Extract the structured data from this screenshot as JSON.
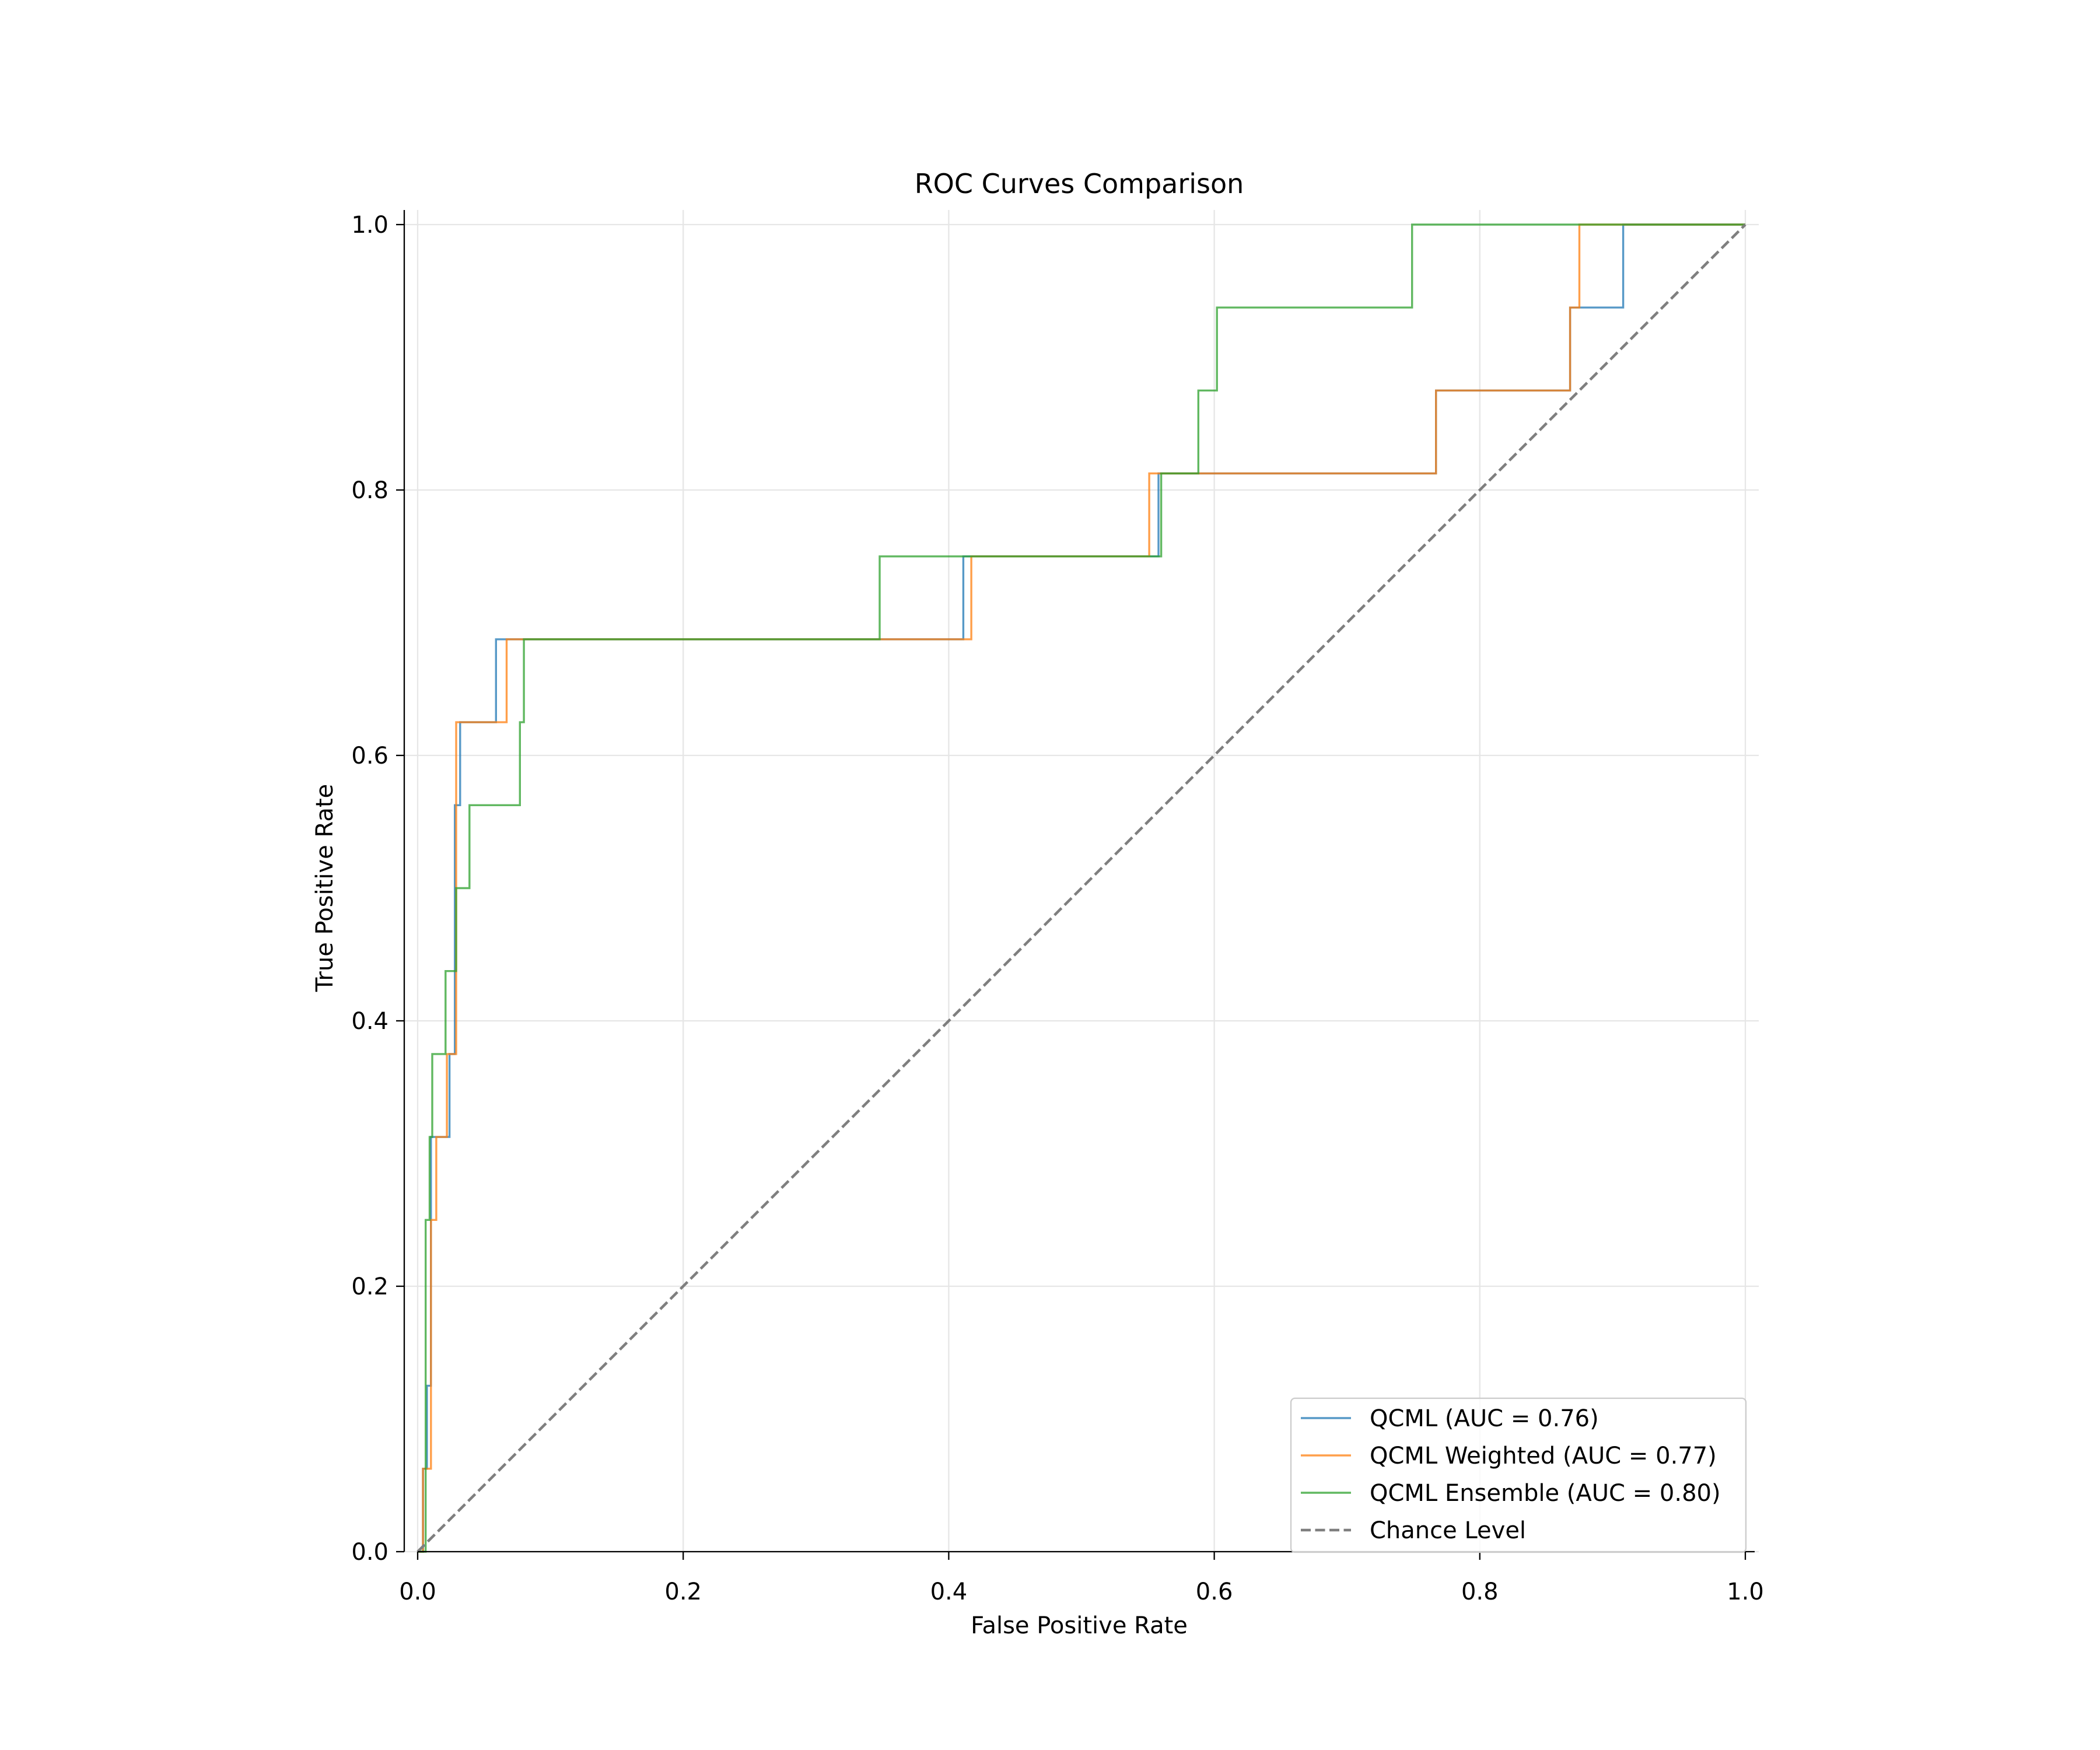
{
  "chart_data": {
    "type": "line",
    "title": "ROC Curves Comparison",
    "xlabel": "False Positive Rate",
    "ylabel": "True Positive Rate",
    "xlim": [
      0.0,
      1.0
    ],
    "ylim": [
      0.0,
      1.0
    ],
    "xticks": [
      "0.0",
      "0.2",
      "0.4",
      "0.6",
      "0.8",
      "1.0"
    ],
    "yticks": [
      "0.0",
      "0.2",
      "0.4",
      "0.6",
      "0.8",
      "1.0"
    ],
    "grid": true,
    "legend_position": "lower-right",
    "series": [
      {
        "name": "QCML (AUC = 0.76)",
        "color": "#1f77b4",
        "style": "step",
        "x": [
          0.0,
          0.004,
          0.004,
          0.007,
          0.007,
          0.01,
          0.01,
          0.024,
          0.024,
          0.028,
          0.028,
          0.032,
          0.032,
          0.059,
          0.059,
          0.411,
          0.411,
          0.558,
          0.558,
          0.767,
          0.767,
          0.868,
          0.868,
          0.908,
          0.908,
          1.0
        ],
        "y": [
          0.0,
          0.0,
          0.0625,
          0.0625,
          0.125,
          0.125,
          0.3125,
          0.3125,
          0.375,
          0.375,
          0.5625,
          0.5625,
          0.625,
          0.625,
          0.6875,
          0.6875,
          0.75,
          0.75,
          0.8125,
          0.8125,
          0.875,
          0.875,
          0.9375,
          0.9375,
          1.0,
          1.0
        ]
      },
      {
        "name": "QCML Weighted (AUC = 0.77)",
        "color": "#ff7f0e",
        "style": "step",
        "x": [
          0.0,
          0.004,
          0.004,
          0.01,
          0.01,
          0.014,
          0.014,
          0.022,
          0.022,
          0.029,
          0.029,
          0.067,
          0.067,
          0.417,
          0.417,
          0.551,
          0.551,
          0.767,
          0.767,
          0.868,
          0.868,
          0.875,
          0.875,
          1.0
        ],
        "y": [
          0.0,
          0.0,
          0.0625,
          0.0625,
          0.25,
          0.25,
          0.3125,
          0.3125,
          0.375,
          0.375,
          0.625,
          0.625,
          0.6875,
          0.6875,
          0.75,
          0.75,
          0.8125,
          0.8125,
          0.875,
          0.875,
          0.9375,
          0.9375,
          1.0,
          1.0
        ]
      },
      {
        "name": "QCML Ensemble (AUC = 0.80)",
        "color": "#2ca02c",
        "style": "step",
        "x": [
          0.0,
          0.006,
          0.006,
          0.009,
          0.009,
          0.011,
          0.011,
          0.021,
          0.021,
          0.029,
          0.029,
          0.039,
          0.039,
          0.077,
          0.077,
          0.08,
          0.08,
          0.348,
          0.348,
          0.56,
          0.56,
          0.588,
          0.588,
          0.602,
          0.602,
          0.749,
          0.749,
          1.0
        ],
        "y": [
          0.0,
          0.0,
          0.25,
          0.25,
          0.3125,
          0.3125,
          0.375,
          0.375,
          0.4375,
          0.4375,
          0.5,
          0.5,
          0.5625,
          0.5625,
          0.625,
          0.625,
          0.6875,
          0.6875,
          0.75,
          0.75,
          0.8125,
          0.8125,
          0.875,
          0.875,
          0.9375,
          0.9375,
          1.0,
          1.0
        ]
      },
      {
        "name": "Chance Level",
        "color": "#7f7f7f",
        "style": "dashed",
        "x": [
          0.0,
          1.0
        ],
        "y": [
          0.0,
          1.0
        ]
      }
    ]
  }
}
